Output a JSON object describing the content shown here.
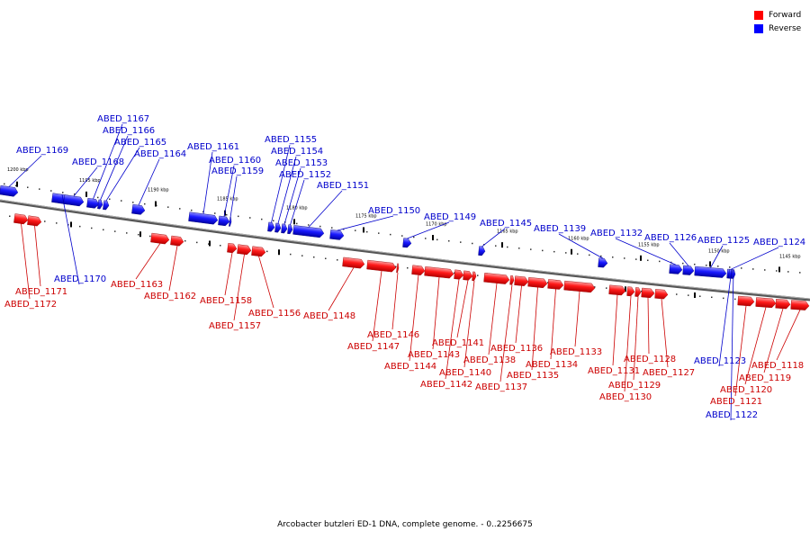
{
  "legend": {
    "forward_label": "Forward",
    "reverse_label": "Reverse",
    "forward_color": "#ff0000",
    "reverse_color": "#0000ff"
  },
  "caption": "Arcobacter butzleri ED-1 DNA, complete genome. - 0..2256675",
  "scale_labels": [
    "1200 kbp",
    "1195 kbp",
    "1190 kbp",
    "1185 kbp",
    "1180 kbp",
    "1175 kbp",
    "1170 kbp",
    "1165 kbp",
    "1160 kbp",
    "1155 kbp",
    "1150 kbp",
    "1145 kbp"
  ],
  "genes": [
    {
      "name": "ABED_1172",
      "strand": "forward"
    },
    {
      "name": "ABED_1171",
      "strand": "forward"
    },
    {
      "name": "ABED_1170",
      "strand": "reverse"
    },
    {
      "name": "ABED_1169",
      "strand": "reverse"
    },
    {
      "name": "ABED_1168",
      "strand": "reverse"
    },
    {
      "name": "ABED_1167",
      "strand": "reverse"
    },
    {
      "name": "ABED_1166",
      "strand": "reverse"
    },
    {
      "name": "ABED_1165",
      "strand": "reverse"
    },
    {
      "name": "ABED_1164",
      "strand": "reverse"
    },
    {
      "name": "ABED_1163",
      "strand": "forward"
    },
    {
      "name": "ABED_1162",
      "strand": "forward"
    },
    {
      "name": "ABED_1161",
      "strand": "reverse"
    },
    {
      "name": "ABED_1160",
      "strand": "reverse"
    },
    {
      "name": "ABED_1159",
      "strand": "reverse"
    },
    {
      "name": "ABED_1158",
      "strand": "forward"
    },
    {
      "name": "ABED_1157",
      "strand": "forward"
    },
    {
      "name": "ABED_1156",
      "strand": "forward"
    },
    {
      "name": "ABED_1155",
      "strand": "reverse"
    },
    {
      "name": "ABED_1154",
      "strand": "reverse"
    },
    {
      "name": "ABED_1153",
      "strand": "reverse"
    },
    {
      "name": "ABED_1152",
      "strand": "reverse"
    },
    {
      "name": "ABED_1151",
      "strand": "reverse"
    },
    {
      "name": "ABED_1150",
      "strand": "reverse"
    },
    {
      "name": "ABED_1149",
      "strand": "reverse"
    },
    {
      "name": "ABED_1148",
      "strand": "forward"
    },
    {
      "name": "ABED_1147",
      "strand": "forward"
    },
    {
      "name": "ABED_1146",
      "strand": "forward"
    },
    {
      "name": "ABED_1145",
      "strand": "reverse"
    },
    {
      "name": "ABED_1144",
      "strand": "forward"
    },
    {
      "name": "ABED_1143",
      "strand": "forward"
    },
    {
      "name": "ABED_1142",
      "strand": "forward"
    },
    {
      "name": "ABED_1141",
      "strand": "forward"
    },
    {
      "name": "ABED_1140",
      "strand": "forward"
    },
    {
      "name": "ABED_1139",
      "strand": "reverse"
    },
    {
      "name": "ABED_1138",
      "strand": "forward"
    },
    {
      "name": "ABED_1137",
      "strand": "forward"
    },
    {
      "name": "ABED_1136",
      "strand": "forward"
    },
    {
      "name": "ABED_1135",
      "strand": "forward"
    },
    {
      "name": "ABED_1134",
      "strand": "forward"
    },
    {
      "name": "ABED_1133",
      "strand": "forward"
    },
    {
      "name": "ABED_1132",
      "strand": "reverse"
    },
    {
      "name": "ABED_1131",
      "strand": "forward"
    },
    {
      "name": "ABED_1130",
      "strand": "forward"
    },
    {
      "name": "ABED_1129",
      "strand": "forward"
    },
    {
      "name": "ABED_1128",
      "strand": "forward"
    },
    {
      "name": "ABED_1127",
      "strand": "forward"
    },
    {
      "name": "ABED_1126",
      "strand": "reverse"
    },
    {
      "name": "ABED_1125",
      "strand": "reverse"
    },
    {
      "name": "ABED_1124",
      "strand": "reverse"
    },
    {
      "name": "ABED_1123",
      "strand": "reverse"
    },
    {
      "name": "ABED_1122",
      "strand": "reverse"
    },
    {
      "name": "ABED_1121",
      "strand": "forward"
    },
    {
      "name": "ABED_1120",
      "strand": "forward"
    },
    {
      "name": "ABED_1119",
      "strand": "forward"
    },
    {
      "name": "ABED_1118",
      "strand": "forward"
    }
  ]
}
